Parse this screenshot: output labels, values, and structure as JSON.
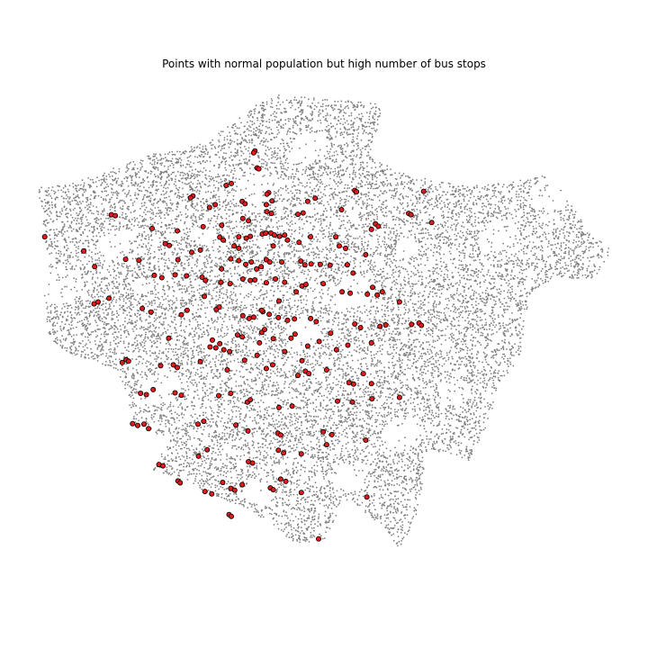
{
  "chart_data": {
    "type": "scatter",
    "title": "Points with normal population but high number of bus stops",
    "xlabel": "",
    "ylabel": "",
    "axes_visible": false,
    "grid": false,
    "legend": "none",
    "series": [
      {
        "role": "background",
        "color": "#808080",
        "points": []
      },
      {
        "role": "highlighted",
        "color": "#e41a1c",
        "edge_color": "#000000",
        "points": [
          [
            0.378,
            0.123
          ],
          [
            0.376,
            0.127
          ],
          [
            0.382,
            0.16
          ],
          [
            0.385,
            0.162
          ],
          [
            0.402,
            0.214
          ],
          [
            0.399,
            0.217
          ],
          [
            0.27,
            0.221
          ],
          [
            0.266,
            0.225
          ],
          [
            0.328,
            0.198
          ],
          [
            0.337,
            0.194
          ],
          [
            0.299,
            0.246
          ],
          [
            0.309,
            0.24
          ],
          [
            0.356,
            0.233
          ],
          [
            0.361,
            0.238
          ],
          [
            0.398,
            0.24
          ],
          [
            0.408,
            0.232
          ],
          [
            0.47,
            0.233
          ],
          [
            0.483,
            0.226
          ],
          [
            0.552,
            0.209
          ],
          [
            0.555,
            0.212
          ],
          [
            0.672,
            0.211
          ],
          [
            0.128,
            0.262
          ],
          [
            0.135,
            0.264
          ],
          [
            0.199,
            0.292
          ],
          [
            0.243,
            0.297
          ],
          [
            0.288,
            0.288
          ],
          [
            0.32,
            0.285
          ],
          [
            0.357,
            0.27
          ],
          [
            0.367,
            0.275
          ],
          [
            0.399,
            0.255
          ],
          [
            0.407,
            0.259
          ],
          [
            0.453,
            0.261
          ],
          [
            0.462,
            0.258
          ],
          [
            0.529,
            0.251
          ],
          [
            0.588,
            0.282
          ],
          [
            0.593,
            0.287
          ],
          [
            0.646,
            0.259
          ],
          [
            0.65,
            0.262
          ],
          [
            0.686,
            0.279
          ],
          [
            0.012,
            0.31
          ],
          [
            0.08,
            0.341
          ],
          [
            0.099,
            0.375
          ],
          [
            0.153,
            0.359
          ],
          [
            0.176,
            0.361
          ],
          [
            0.222,
            0.325
          ],
          [
            0.229,
            0.329
          ],
          [
            0.244,
            0.36
          ],
          [
            0.268,
            0.344
          ],
          [
            0.283,
            0.339
          ],
          [
            0.317,
            0.311
          ],
          [
            0.323,
            0.317
          ],
          [
            0.342,
            0.33
          ],
          [
            0.35,
            0.335
          ],
          [
            0.363,
            0.313
          ],
          [
            0.37,
            0.309
          ],
          [
            0.391,
            0.304
          ],
          [
            0.397,
            0.302
          ],
          [
            0.406,
            0.302
          ],
          [
            0.412,
            0.306
          ],
          [
            0.421,
            0.309
          ],
          [
            0.43,
            0.306
          ],
          [
            0.435,
            0.317
          ],
          [
            0.475,
            0.31
          ],
          [
            0.519,
            0.31
          ],
          [
            0.525,
            0.33
          ],
          [
            0.536,
            0.335
          ],
          [
            0.571,
            0.349
          ],
          [
            0.581,
            0.294
          ],
          [
            0.336,
            0.358
          ],
          [
            0.35,
            0.362
          ],
          [
            0.362,
            0.37
          ],
          [
            0.372,
            0.365
          ],
          [
            0.381,
            0.38
          ],
          [
            0.389,
            0.375
          ],
          [
            0.398,
            0.36
          ],
          [
            0.404,
            0.365
          ],
          [
            0.425,
            0.365
          ],
          [
            0.458,
            0.363
          ],
          [
            0.465,
            0.371
          ],
          [
            0.476,
            0.369
          ],
          [
            0.492,
            0.37
          ],
          [
            0.509,
            0.372
          ],
          [
            0.539,
            0.371
          ],
          [
            0.549,
            0.389
          ],
          [
            0.203,
            0.394
          ],
          [
            0.216,
            0.399
          ],
          [
            0.239,
            0.393
          ],
          [
            0.259,
            0.395
          ],
          [
            0.286,
            0.398
          ],
          [
            0.292,
            0.405
          ],
          [
            0.319,
            0.409
          ],
          [
            0.335,
            0.412
          ],
          [
            0.357,
            0.402
          ],
          [
            0.37,
            0.405
          ],
          [
            0.378,
            0.404
          ],
          [
            0.398,
            0.41
          ],
          [
            0.414,
            0.402
          ],
          [
            0.43,
            0.409
          ],
          [
            0.46,
            0.417
          ],
          [
            0.467,
            0.414
          ],
          [
            0.497,
            0.412
          ],
          [
            0.53,
            0.43
          ],
          [
            0.544,
            0.433
          ],
          [
            0.574,
            0.435
          ],
          [
            0.583,
            0.42
          ],
          [
            0.591,
            0.437
          ],
          [
            0.6,
            0.43
          ],
          [
            0.63,
            0.452
          ],
          [
            0.098,
            0.456
          ],
          [
            0.105,
            0.452
          ],
          [
            0.124,
            0.444
          ],
          [
            0.182,
            0.466
          ],
          [
            0.197,
            0.474
          ],
          [
            0.25,
            0.48
          ],
          [
            0.311,
            0.468
          ],
          [
            0.316,
            0.463
          ],
          [
            0.357,
            0.482
          ],
          [
            0.368,
            0.488
          ],
          [
            0.376,
            0.485
          ],
          [
            0.392,
            0.473
          ],
          [
            0.403,
            0.479
          ],
          [
            0.419,
            0.486
          ],
          [
            0.435,
            0.492
          ],
          [
            0.447,
            0.489
          ],
          [
            0.475,
            0.488
          ],
          [
            0.485,
            0.495
          ],
          [
            0.552,
            0.5
          ],
          [
            0.562,
            0.508
          ],
          [
            0.596,
            0.505
          ],
          [
            0.606,
            0.502
          ],
          [
            0.651,
            0.501
          ],
          [
            0.664,
            0.498
          ],
          [
            0.668,
            0.503
          ],
          [
            0.228,
            0.531
          ],
          [
            0.304,
            0.535
          ],
          [
            0.317,
            0.543
          ],
          [
            0.348,
            0.524
          ],
          [
            0.356,
            0.528
          ],
          [
            0.386,
            0.541
          ],
          [
            0.41,
            0.532
          ],
          [
            0.441,
            0.531
          ],
          [
            0.448,
            0.522
          ],
          [
            0.49,
            0.538
          ],
          [
            0.52,
            0.556
          ],
          [
            0.54,
            0.546
          ],
          [
            0.581,
            0.541
          ],
          [
            0.147,
            0.584
          ],
          [
            0.154,
            0.578
          ],
          [
            0.158,
            0.581
          ],
          [
            0.214,
            0.591
          ],
          [
            0.236,
            0.589
          ],
          [
            0.243,
            0.595
          ],
          [
            0.283,
            0.582
          ],
          [
            0.324,
            0.556
          ],
          [
            0.334,
            0.56
          ],
          [
            0.36,
            0.579
          ],
          [
            0.382,
            0.568
          ],
          [
            0.398,
            0.597
          ],
          [
            0.409,
            0.589
          ],
          [
            0.453,
            0.612
          ],
          [
            0.466,
            0.603
          ],
          [
            0.472,
            0.608
          ],
          [
            0.503,
            0.6
          ],
          [
            0.542,
            0.628
          ],
          [
            0.55,
            0.631
          ],
          [
            0.567,
            0.608
          ],
          [
            0.581,
            0.63
          ],
          [
            0.179,
            0.651
          ],
          [
            0.189,
            0.654
          ],
          [
            0.201,
            0.643
          ],
          [
            0.239,
            0.65
          ],
          [
            0.25,
            0.655
          ],
          [
            0.315,
            0.656
          ],
          [
            0.336,
            0.651
          ],
          [
            0.365,
            0.67
          ],
          [
            0.37,
            0.665
          ],
          [
            0.42,
            0.682
          ],
          [
            0.443,
            0.679
          ],
          [
            0.522,
            0.668
          ],
          [
            0.548,
            0.67
          ],
          [
            0.582,
            0.663
          ],
          [
            0.63,
            0.66
          ],
          [
            0.165,
            0.717
          ],
          [
            0.174,
            0.721
          ],
          [
            0.185,
            0.718
          ],
          [
            0.193,
            0.728
          ],
          [
            0.279,
            0.718
          ],
          [
            0.289,
            0.712
          ],
          [
            0.345,
            0.72
          ],
          [
            0.366,
            0.733
          ],
          [
            0.418,
            0.738
          ],
          [
            0.423,
            0.742
          ],
          [
            0.497,
            0.735
          ],
          [
            0.512,
            0.741
          ],
          [
            0.28,
            0.788
          ],
          [
            0.295,
            0.774
          ],
          [
            0.367,
            0.8
          ],
          [
            0.374,
            0.803
          ],
          [
            0.419,
            0.775
          ],
          [
            0.428,
            0.781
          ],
          [
            0.459,
            0.783
          ],
          [
            0.503,
            0.763
          ],
          [
            0.571,
            0.753
          ],
          [
            0.211,
            0.806
          ],
          [
            0.218,
            0.809
          ],
          [
            0.244,
            0.842
          ],
          [
            0.248,
            0.846
          ],
          [
            0.291,
            0.865
          ],
          [
            0.303,
            0.87
          ],
          [
            0.322,
            0.845
          ],
          [
            0.336,
            0.858
          ],
          [
            0.343,
            0.862
          ],
          [
            0.356,
            0.85
          ],
          [
            0.405,
            0.857
          ],
          [
            0.41,
            0.861
          ],
          [
            0.423,
            0.838
          ],
          [
            0.432,
            0.843
          ],
          [
            0.459,
            0.867
          ],
          [
            0.573,
            0.877
          ],
          [
            0.333,
            0.915
          ],
          [
            0.337,
            0.919
          ],
          [
            0.489,
            0.968
          ],
          [
            0.3,
            0.55
          ],
          [
            0.31,
            0.552
          ],
          [
            0.39,
            0.518
          ],
          [
            0.395,
            0.512
          ],
          [
            0.47,
            0.548
          ],
          [
            0.33,
            0.6
          ],
          [
            0.29,
            0.44
          ],
          [
            0.45,
            0.43
          ],
          [
            0.32,
            0.38
          ],
          [
            0.42,
            0.45
          ],
          [
            0.26,
            0.47
          ],
          [
            0.51,
            0.52
          ],
          [
            0.455,
            0.322
          ],
          [
            0.41,
            0.33
          ],
          [
            0.35,
            0.31
          ],
          [
            0.39,
            0.47
          ],
          [
            0.43,
            0.56
          ],
          [
            0.46,
            0.58
          ]
        ]
      }
    ],
    "xlim": [
      0,
      1
    ],
    "ylim": [
      0,
      1
    ],
    "x_axis_direction": "west-to-east",
    "y_axis_direction": "north-to-south"
  }
}
